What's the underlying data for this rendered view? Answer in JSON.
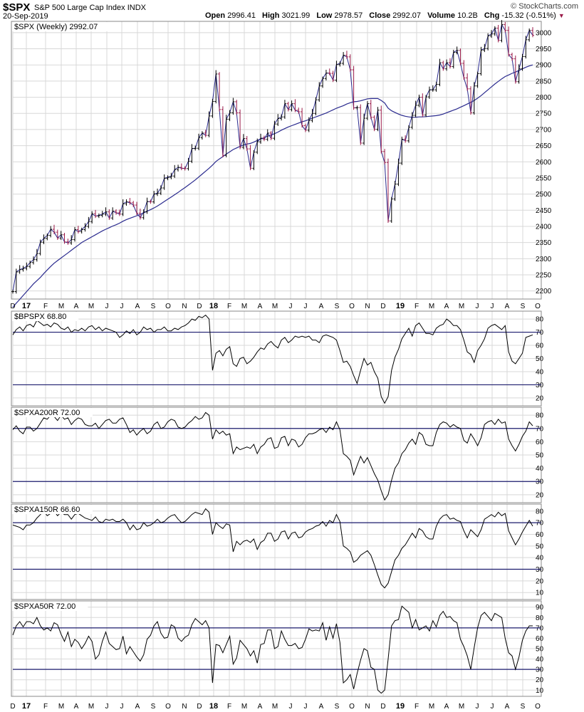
{
  "header": {
    "symbol": "$SPX",
    "name": "S&P 500 Large Cap Index",
    "exchange": "INDX",
    "date": "20-Sep-2019",
    "open_label": "Open",
    "open": "2996.41",
    "high_label": "High",
    "high": "3021.99",
    "low_label": "Low",
    "low": "2978.57",
    "close_label": "Close",
    "close": "2992.07",
    "volume_label": "Volume",
    "volume": "10.2B",
    "chg_label": "Chg",
    "chg": "-15.32 (-0.51%)",
    "logo": "© StockCharts.com"
  },
  "colors": {
    "up": "#000000",
    "down": "#9a1a48",
    "ma": "#2a2a8e",
    "ref": "#1c1c6e",
    "grid": "#d8d8d8",
    "frame": "#888888"
  },
  "x_axis": {
    "labels": [
      "D",
      "17",
      "F",
      "M",
      "A",
      "M",
      "J",
      "J",
      "A",
      "S",
      "O",
      "N",
      "D",
      "18",
      "F",
      "M",
      "A",
      "M",
      "J",
      "J",
      "A",
      "S",
      "O",
      "N",
      "D",
      "19",
      "F",
      "M",
      "A",
      "M",
      "J",
      "J",
      "A",
      "S",
      "O"
    ],
    "bold": [
      "17",
      "18",
      "19"
    ]
  },
  "chart_data": [
    {
      "type": "line",
      "title": "$SPX (Weekly) 2992.07",
      "ylim": [
        2175,
        3035
      ],
      "yticks": [
        2200,
        2250,
        2300,
        2350,
        2400,
        2450,
        2500,
        2550,
        2600,
        2650,
        2700,
        2750,
        2800,
        2850,
        2900,
        2950,
        3000
      ],
      "price_weekly_close": [
        2198,
        2259,
        2266,
        2270,
        2276,
        2288,
        2297,
        2316,
        2351,
        2363,
        2372,
        2391,
        2382,
        2364,
        2374,
        2352,
        2349,
        2359,
        2390,
        2384,
        2390,
        2400,
        2415,
        2439,
        2432,
        2434,
        2438,
        2445,
        2426,
        2447,
        2442,
        2438,
        2470,
        2476,
        2473,
        2466,
        2441,
        2427,
        2445,
        2477,
        2476,
        2500,
        2503,
        2519,
        2549,
        2552,
        2556,
        2576,
        2583,
        2580,
        2579,
        2602,
        2641,
        2642,
        2675,
        2689,
        2682,
        2742,
        2787,
        2872,
        2762,
        2620,
        2732,
        2752,
        2786,
        2752,
        2645,
        2672,
        2640,
        2580,
        2630,
        2662,
        2673,
        2670,
        2689,
        2673,
        2717,
        2734,
        2739,
        2780,
        2762,
        2780,
        2760,
        2755,
        2712,
        2698,
        2728,
        2750,
        2792,
        2835,
        2858,
        2875,
        2874,
        2853,
        2901,
        2905,
        2930,
        2925,
        2885,
        2767,
        2768,
        2658,
        2735,
        2780,
        2738,
        2701,
        2760,
        2632,
        2598,
        2417,
        2485,
        2531,
        2596,
        2670,
        2665,
        2707,
        2744,
        2775,
        2800,
        2745,
        2801,
        2823,
        2823,
        2840,
        2907,
        2888,
        2907,
        2895,
        2939,
        2945,
        2905,
        2860,
        2826,
        2752,
        2835,
        2873,
        2946,
        2951,
        2990,
        2996,
        3014,
        2976,
        3025,
        3007,
        2932,
        2919,
        2848,
        2888,
        2926,
        2978,
        3007,
        2992
      ],
      "ma_weekly": [
        2150,
        2162,
        2174,
        2186,
        2198,
        2210,
        2222,
        2232,
        2242,
        2254,
        2265,
        2276,
        2286,
        2294,
        2302,
        2310,
        2318,
        2326,
        2334,
        2342,
        2350,
        2356,
        2362,
        2368,
        2374,
        2380,
        2386,
        2391,
        2396,
        2401,
        2405,
        2410,
        2416,
        2421,
        2425,
        2429,
        2433,
        2437,
        2442,
        2447,
        2452,
        2457,
        2463,
        2470,
        2477,
        2484,
        2491,
        2498,
        2505,
        2513,
        2520,
        2528,
        2536,
        2544,
        2553,
        2562,
        2571,
        2580,
        2590,
        2601,
        2609,
        2616,
        2624,
        2631,
        2638,
        2643,
        2648,
        2652,
        2655,
        2657,
        2661,
        2666,
        2671,
        2675,
        2679,
        2683,
        2687,
        2692,
        2698,
        2703,
        2708,
        2712,
        2716,
        2720,
        2724,
        2727,
        2731,
        2735,
        2739,
        2743,
        2747,
        2751,
        2756,
        2761,
        2766,
        2770,
        2774,
        2779,
        2783,
        2786,
        2787,
        2789,
        2792,
        2795,
        2796,
        2796,
        2796,
        2790,
        2782,
        2766,
        2758,
        2753,
        2748,
        2744,
        2741,
        2739,
        2738,
        2738,
        2739,
        2739,
        2740,
        2741,
        2742,
        2743,
        2745,
        2748,
        2752,
        2756,
        2760,
        2764,
        2769,
        2774,
        2779,
        2784,
        2790,
        2797,
        2805,
        2814,
        2823,
        2832,
        2841,
        2849,
        2857,
        2864,
        2869,
        2874,
        2878,
        2883,
        2888,
        2893,
        2897,
        2900
      ]
    },
    {
      "type": "line",
      "title": "$BPSPX 68.80",
      "ylim": [
        14,
        86
      ],
      "yticks": [
        20,
        30,
        40,
        50,
        60,
        70,
        80
      ],
      "reference_lines": [
        30,
        70
      ],
      "values": [
        68,
        72,
        74,
        71,
        75,
        76,
        74,
        79,
        77,
        75,
        76,
        74,
        77,
        76,
        73,
        72,
        74,
        70,
        72,
        71,
        73,
        71,
        74,
        75,
        72,
        74,
        71,
        73,
        72,
        71,
        70,
        66,
        68,
        71,
        69,
        72,
        68,
        70,
        74,
        72,
        73,
        70,
        72,
        72,
        74,
        71,
        71,
        73,
        72,
        74,
        75,
        77,
        80,
        79,
        82,
        81,
        83,
        80,
        41,
        54,
        56,
        52,
        57,
        59,
        46,
        44,
        50,
        51,
        46,
        48,
        51,
        55,
        58,
        57,
        61,
        63,
        60,
        58,
        64,
        66,
        62,
        64,
        67,
        66,
        67,
        66,
        67,
        64,
        64,
        62,
        67,
        68,
        67,
        66,
        64,
        56,
        47,
        48,
        44,
        37,
        31,
        41,
        50,
        45,
        47,
        40,
        35,
        21,
        16,
        21,
        41,
        51,
        57,
        65,
        69,
        73,
        67,
        75,
        77,
        73,
        69,
        69,
        68,
        73,
        75,
        76,
        80,
        78,
        75,
        75,
        72,
        64,
        55,
        53,
        47,
        56,
        60,
        65,
        73,
        75,
        76,
        74,
        72,
        75,
        55,
        48,
        46,
        50,
        54,
        66,
        67,
        68
      ]
    },
    {
      "type": "line",
      "title": "$SPXA200R 72.00",
      "ylim": [
        14,
        86
      ],
      "yticks": [
        20,
        30,
        40,
        50,
        60,
        70,
        80
      ],
      "reference_lines": [
        30,
        70
      ],
      "values": [
        69,
        72,
        68,
        66,
        71,
        71,
        68,
        70,
        74,
        78,
        77,
        80,
        79,
        76,
        80,
        77,
        78,
        73,
        76,
        78,
        77,
        73,
        72,
        72,
        74,
        70,
        73,
        76,
        77,
        74,
        74,
        77,
        78,
        73,
        67,
        69,
        65,
        68,
        70,
        66,
        68,
        73,
        75,
        70,
        71,
        75,
        77,
        76,
        71,
        70,
        71,
        74,
        76,
        79,
        77,
        78,
        82,
        80,
        62,
        69,
        66,
        68,
        65,
        66,
        51,
        56,
        54,
        55,
        56,
        55,
        58,
        51,
        56,
        58,
        62,
        63,
        55,
        56,
        63,
        64,
        57,
        62,
        61,
        56,
        58,
        63,
        66,
        66,
        67,
        69,
        70,
        67,
        71,
        69,
        75,
        69,
        51,
        49,
        46,
        35,
        42,
        49,
        44,
        48,
        42,
        36,
        31,
        23,
        16,
        20,
        31,
        40,
        44,
        51,
        54,
        59,
        62,
        58,
        67,
        65,
        58,
        57,
        57,
        67,
        73,
        75,
        74,
        71,
        73,
        71,
        70,
        61,
        59,
        66,
        62,
        57,
        63,
        73,
        75,
        76,
        73,
        77,
        74,
        75,
        62,
        57,
        53,
        58,
        64,
        68,
        75,
        72
      ]
    },
    {
      "type": "line",
      "title": "$SPXA150R 66.60",
      "ylim": [
        4,
        86
      ],
      "yticks": [
        10,
        20,
        30,
        40,
        50,
        60,
        70,
        80
      ],
      "reference_lines": [
        30,
        70
      ],
      "values": [
        68,
        67,
        66,
        64,
        68,
        68,
        70,
        74,
        77,
        80,
        76,
        78,
        80,
        76,
        79,
        77,
        77,
        73,
        77,
        78,
        76,
        74,
        73,
        72,
        75,
        71,
        70,
        73,
        72,
        73,
        71,
        71,
        73,
        70,
        64,
        68,
        64,
        65,
        70,
        67,
        68,
        70,
        73,
        70,
        71,
        74,
        76,
        77,
        73,
        70,
        71,
        74,
        77,
        79,
        78,
        77,
        82,
        79,
        60,
        70,
        67,
        65,
        69,
        68,
        45,
        54,
        51,
        54,
        55,
        53,
        56,
        47,
        53,
        55,
        61,
        61,
        54,
        56,
        62,
        63,
        56,
        61,
        62,
        57,
        58,
        62,
        64,
        65,
        67,
        68,
        71,
        67,
        72,
        70,
        77,
        71,
        50,
        48,
        45,
        36,
        38,
        42,
        44,
        46,
        42,
        34,
        25,
        17,
        14,
        18,
        28,
        38,
        42,
        48,
        51,
        56,
        61,
        57,
        65,
        63,
        58,
        56,
        56,
        67,
        73,
        76,
        77,
        73,
        74,
        72,
        71,
        63,
        57,
        64,
        61,
        58,
        64,
        73,
        75,
        77,
        75,
        79,
        76,
        78,
        63,
        57,
        51,
        56,
        62,
        67,
        72,
        67
      ]
    },
    {
      "type": "line",
      "title": "$SPXA50R 72.00",
      "ylim": [
        4,
        96
      ],
      "yticks": [
        10,
        20,
        30,
        40,
        50,
        60,
        70,
        80,
        90
      ],
      "reference_lines": [
        30,
        70
      ],
      "values": [
        63,
        72,
        76,
        71,
        76,
        76,
        74,
        80,
        72,
        68,
        70,
        67,
        75,
        73,
        64,
        57,
        66,
        52,
        59,
        56,
        50,
        55,
        62,
        57,
        40,
        44,
        57,
        66,
        55,
        52,
        49,
        50,
        62,
        45,
        52,
        47,
        42,
        38,
        44,
        59,
        63,
        72,
        76,
        65,
        60,
        61,
        73,
        71,
        60,
        57,
        61,
        63,
        73,
        79,
        76,
        73,
        77,
        70,
        17,
        54,
        53,
        46,
        54,
        62,
        35,
        41,
        58,
        54,
        50,
        43,
        48,
        36,
        54,
        55,
        68,
        68,
        50,
        52,
        67,
        59,
        53,
        53,
        55,
        50,
        51,
        59,
        69,
        67,
        68,
        67,
        75,
        58,
        71,
        60,
        74,
        56,
        17,
        20,
        25,
        11,
        26,
        39,
        50,
        48,
        32,
        30,
        10,
        7,
        10,
        40,
        72,
        77,
        78,
        91,
        88,
        85,
        70,
        78,
        68,
        70,
        72,
        67,
        77,
        71,
        82,
        86,
        80,
        81,
        77,
        75,
        59,
        52,
        43,
        30,
        51,
        70,
        82,
        85,
        81,
        77,
        84,
        82,
        80,
        60,
        46,
        43,
        30,
        42,
        58,
        67,
        72,
        72
      ]
    }
  ]
}
